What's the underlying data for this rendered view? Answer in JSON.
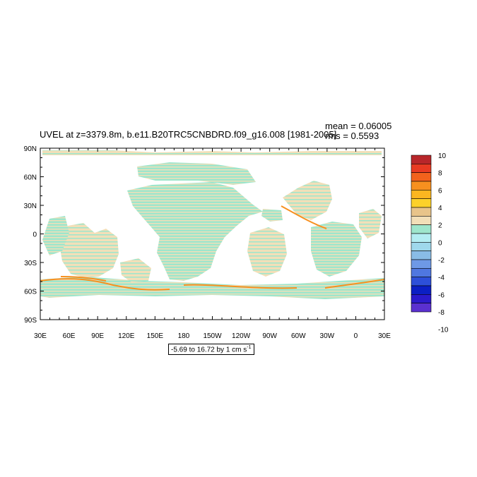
{
  "chart_data": {
    "type": "heatmap",
    "title": "UVEL at z=3379.8m, b.e11.B20TRC5CNBDRD.f09_g16.008 [1981-2005]",
    "stats": {
      "mean": "mean = 0.06005",
      "rms": "rms = 0.5593"
    },
    "range_note": {
      "text": "-5.69 to 16.72 by 1 cm s",
      "unit_exponent": "-1"
    },
    "x_ticks": [
      "30E",
      "60E",
      "90E",
      "120E",
      "150E",
      "180",
      "150W",
      "120W",
      "90W",
      "60W",
      "30W",
      "0",
      "30E"
    ],
    "y_ticks": [
      "90N",
      "60N",
      "30N",
      "0",
      "30S",
      "60S",
      "90S"
    ],
    "x_range_deg": [
      30,
      390
    ],
    "y_range_deg": [
      -90,
      90
    ],
    "colorbar": {
      "labels": [
        "10",
        "8",
        "6",
        "4",
        "2",
        "0",
        "-2",
        "-4",
        "-6",
        "-8",
        "-10"
      ],
      "colors": [
        "#b8262a",
        "#e83a22",
        "#f2621c",
        "#f7901f",
        "#fbb620",
        "#fcd12a",
        "#e8c48a",
        "#f2dfb8",
        "#9ee6cc",
        "#b3edf2",
        "#9fd8ec",
        "#89bce6",
        "#6e99e6",
        "#4f77e0",
        "#2d4fd9",
        "#0b1fc4",
        "#2b1acc",
        "#5a30d0"
      ]
    },
    "field_colors": {
      "positive": "#f2dfb8",
      "positive_mid": "#e8c48a",
      "strong": "#f7901f",
      "negative": "#9ee6cc"
    }
  }
}
